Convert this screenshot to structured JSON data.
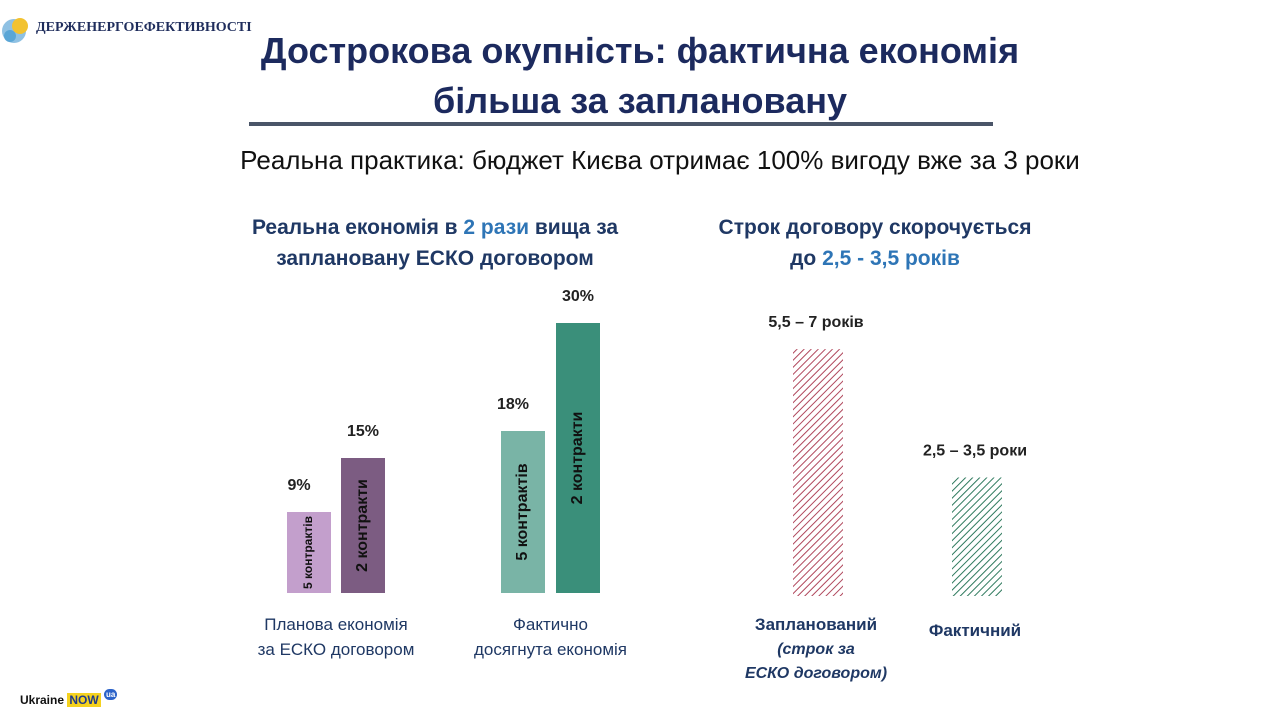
{
  "logo": {
    "name": "ДЕРЖЕНЕРГОЕФЕКТИВНОСТІ"
  },
  "header": {
    "title": [
      "Дострокова окупність: фактична економія",
      "більша за заплановану"
    ],
    "subtitle": "Реальна практика: бюджет Києва отримає 100% вигоду вже за 3 роки"
  },
  "footer": {
    "brand": "Ukraine",
    "now": "NOW",
    "badge": "ua"
  },
  "chart_data": [
    {
      "type": "bar",
      "title": [
        [
          {
            "text": "Реальна економія в ",
            "color": "#1f3864"
          },
          {
            "text": "2 рази",
            "color": "#2e75b6"
          },
          {
            "text": " вища за",
            "color": "#1f3864"
          }
        ],
        [
          {
            "text": "заплановану ЕСКО договором",
            "color": "#1f3864"
          }
        ]
      ],
      "categories": [
        "Планова економія за ЕСКО договором",
        "Фактично досягнута економія"
      ],
      "series": [
        {
          "name": "5 контрактів",
          "colors": [
            "#c39fcc",
            "#79b4a6"
          ],
          "values": [
            9,
            18
          ],
          "value_labels": [
            "9%",
            "18%"
          ]
        },
        {
          "name": "2 контракти",
          "colors": [
            "#7c5c82",
            "#3a8f7a"
          ],
          "values": [
            15,
            30
          ],
          "value_labels": [
            "15%",
            "30%"
          ]
        }
      ]
    },
    {
      "type": "bar",
      "hatch": true,
      "title": [
        [
          {
            "text": "Строк договору скорочується",
            "color": "#1f3864"
          }
        ],
        [
          {
            "text": "до ",
            "color": "#1f3864"
          },
          {
            "text": "2,5 - 3,5 років",
            "color": "#2e75b6"
          }
        ]
      ],
      "categories": [
        "Запланований",
        "Фактичний"
      ],
      "note": "(строк за ЕСКО договором)",
      "low": [
        5.5,
        2.5
      ],
      "high": [
        7,
        3.5
      ],
      "value_labels": [
        "5,5 – 7 років",
        "2,5 – 3,5 роки"
      ],
      "colors": [
        "#b0475c",
        "#2f7a5e"
      ]
    }
  ]
}
